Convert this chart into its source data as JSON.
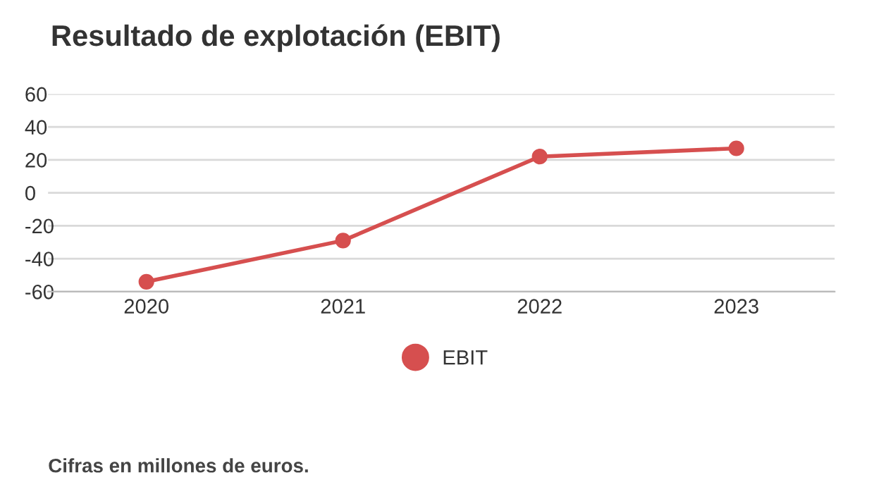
{
  "chart_data": {
    "type": "line",
    "title": "Resultado de explotación (EBIT)",
    "categories": [
      "2020",
      "2021",
      "2022",
      "2023"
    ],
    "series": [
      {
        "name": "EBIT",
        "color": "#d64f4f",
        "values": [
          -54,
          -29,
          22,
          27
        ]
      }
    ],
    "ylim": [
      -60,
      60
    ],
    "yticks": [
      -60,
      -40,
      -20,
      0,
      20,
      40,
      60
    ],
    "grid": "y",
    "legend": "bottom",
    "marker": "circle",
    "line_style": "solid",
    "annotations": [
      "Cifras en millones de euros."
    ]
  }
}
